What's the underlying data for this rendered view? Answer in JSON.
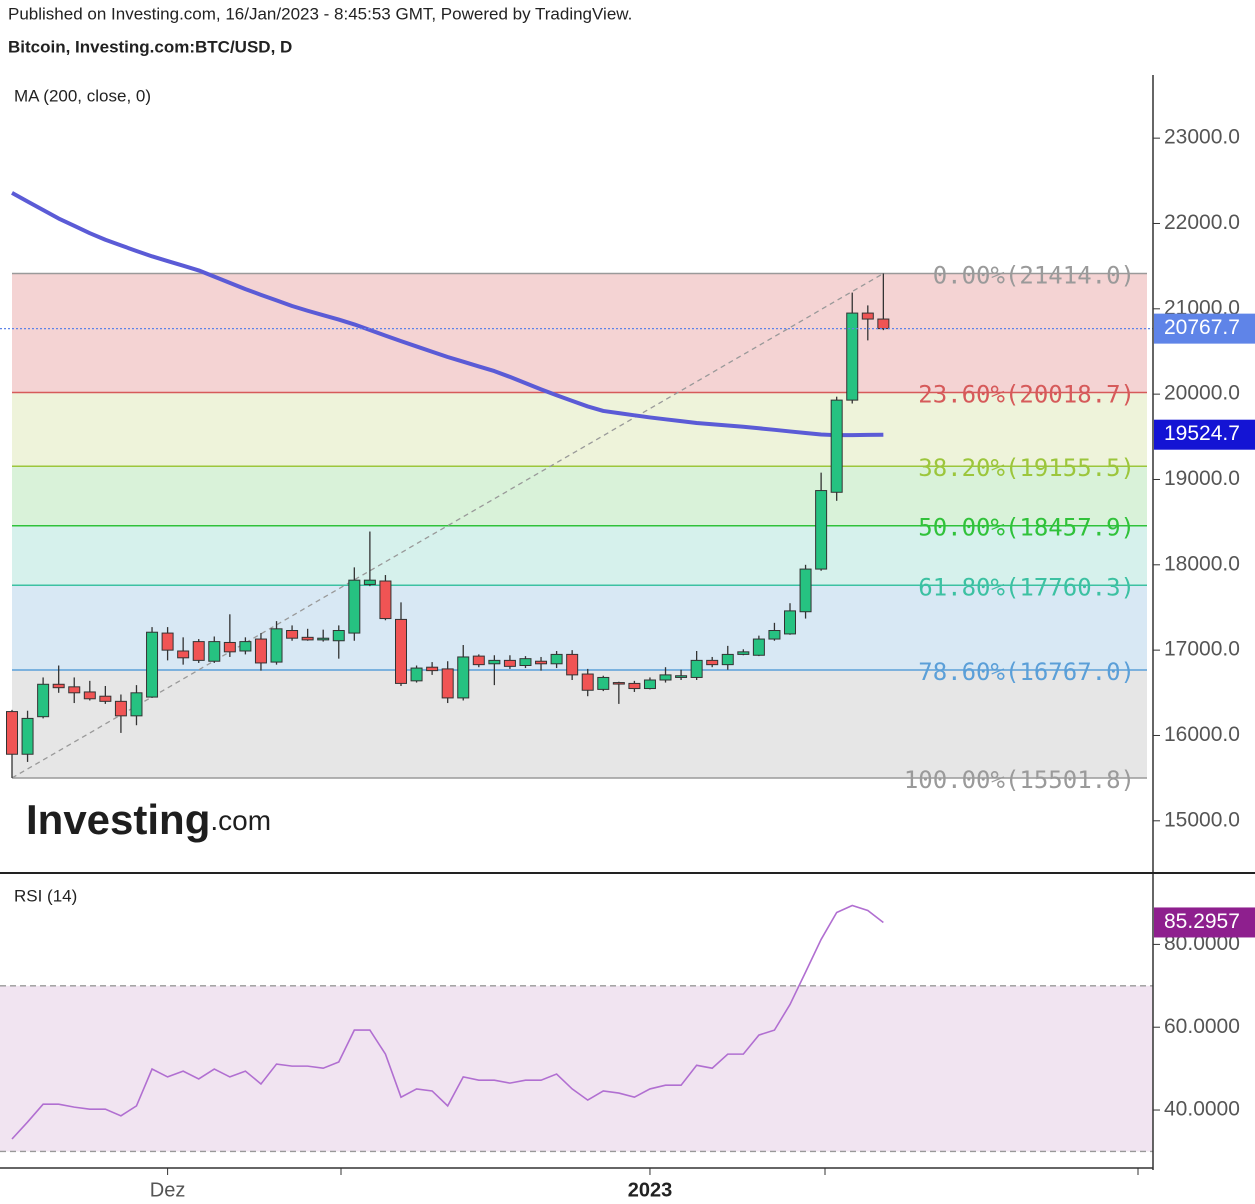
{
  "header": {
    "published": "Published on Investing.com, 16/Jan/2023 - 8:45:53 GMT, Powered by TradingView.",
    "symbol": "Bitcoin, Investing.com:BTC/USD, D"
  },
  "watermark": {
    "main": "Investing",
    "suffix": ".com"
  },
  "chart_data": [
    {
      "type": "candlestick",
      "categories": [
        null,
        null,
        null,
        null,
        null,
        null,
        null,
        null,
        null,
        null,
        "Dez",
        null,
        null,
        null,
        null,
        null,
        null,
        null,
        null,
        null,
        null,
        null,
        null,
        null,
        null,
        null,
        null,
        null,
        null,
        null,
        null,
        null,
        null,
        null,
        null,
        null,
        null,
        null,
        null,
        null,
        null,
        "2023",
        null,
        null,
        null,
        null,
        null,
        null,
        null,
        null,
        null,
        null,
        null,
        null,
        null,
        null,
        null
      ],
      "open": [
        16280,
        15780,
        16220,
        16600,
        16570,
        16510,
        16460,
        16400,
        16230,
        16450,
        17200,
        16990,
        17100,
        16870,
        17090,
        16990,
        17130,
        16860,
        17230,
        17150,
        17120,
        17110,
        17200,
        17770,
        17810,
        17360,
        16640,
        16800,
        16780,
        16440,
        16930,
        16840,
        16880,
        16820,
        16870,
        16840,
        16950,
        16720,
        16540,
        16620,
        16610,
        16550,
        16650,
        16680,
        16680,
        16880,
        16830,
        16950,
        16940,
        17130,
        17190,
        17450,
        17950,
        18850,
        19930,
        20950,
        20880
      ],
      "high": [
        16300,
        16290,
        16680,
        16820,
        16680,
        16640,
        16580,
        16480,
        16590,
        17270,
        17270,
        17150,
        17130,
        17160,
        17420,
        17150,
        17200,
        17340,
        17290,
        17250,
        17240,
        17290,
        17970,
        18390,
        17880,
        17560,
        16820,
        16860,
        16870,
        17060,
        16950,
        16940,
        16940,
        16930,
        16920,
        16990,
        17000,
        16780,
        16700,
        16630,
        16640,
        16680,
        16800,
        16770,
        16990,
        16920,
        17050,
        17010,
        17170,
        17320,
        17550,
        18000,
        19080,
        19970,
        21190,
        21040,
        21414
      ],
      "low": [
        15501.8,
        15690,
        16200,
        16500,
        16380,
        16410,
        16370,
        16030,
        16120,
        16440,
        16880,
        16830,
        16850,
        16850,
        16920,
        16950,
        16760,
        16830,
        17110,
        17110,
        17100,
        16900,
        17110,
        17750,
        17350,
        16580,
        16620,
        16710,
        16380,
        16410,
        16800,
        16590,
        16780,
        16790,
        16760,
        16790,
        16650,
        16460,
        16520,
        16370,
        16510,
        16540,
        16620,
        16650,
        16650,
        16800,
        16770,
        16940,
        16930,
        17110,
        17180,
        17370,
        17930,
        18750,
        19890,
        20630,
        20750
      ],
      "close": [
        15780,
        16200,
        16600,
        16560,
        16500,
        16430,
        16400,
        16230,
        16500,
        17210,
        17000,
        16910,
        16880,
        17100,
        16980,
        17100,
        16850,
        17250,
        17140,
        17120,
        17140,
        17230,
        17820,
        17820,
        17370,
        16610,
        16790,
        16760,
        16440,
        16920,
        16830,
        16880,
        16810,
        16900,
        16840,
        16950,
        16710,
        16530,
        16680,
        16610,
        16550,
        16650,
        16710,
        16700,
        16880,
        16830,
        16950,
        16980,
        17130,
        17230,
        17460,
        17950,
        18870,
        19930,
        20950,
        20880,
        20767.7
      ],
      "up_color": "#26c281",
      "down_color": "#f05454",
      "last_price_color": "#5f84e8",
      "series": [
        {
          "name": "MA (200, close, 0)",
          "color": "#5b5bd6",
          "label_color": "#1414d4",
          "values": [
            22359,
            22258,
            22158,
            22058,
            21972,
            21886,
            21809,
            21743,
            21678,
            21615,
            21560,
            21505,
            21450,
            21377,
            21304,
            21231,
            21164,
            21099,
            21033,
            20977,
            20925,
            20874,
            20817,
            20752,
            20686,
            20621,
            20559,
            20497,
            20435,
            20380,
            20325,
            20270,
            20202,
            20129,
            20056,
            19987,
            19921,
            19856,
            19803,
            19778,
            19752,
            19727,
            19705,
            19684,
            19662,
            19647,
            19632,
            19618,
            19600,
            19582,
            19563,
            19545,
            19527,
            19519,
            19520,
            19522,
            19524.7
          ]
        }
      ],
      "fib_levels": [
        {
          "label": "0.00%(21414.0)",
          "value": 21414,
          "color": "#9a9a9a",
          "fill": "#f4d3d3"
        },
        {
          "label": "23.60%(20018.7)",
          "value": 20018.7,
          "color": "#d65a5a",
          "fill": "#eef3da"
        },
        {
          "label": "38.20%(19155.5)",
          "value": 19155.5,
          "color": "#9cc63c",
          "fill": "#d9f2d9"
        },
        {
          "label": "50.00%(18457.9)",
          "value": 18457.9,
          "color": "#30c23a",
          "fill": "#d6f1ec"
        },
        {
          "label": "61.80%(17760.3)",
          "value": 17760.3,
          "color": "#3cc1a2",
          "fill": "#d8e8f4"
        },
        {
          "label": "78.60%(16767.0)",
          "value": 16767,
          "color": "#5b9fd8",
          "fill": "#e6e6e6"
        },
        {
          "label": "100.00%(15501.8)",
          "value": 15501.8,
          "color": "#9a9a9a"
        }
      ],
      "ylim": [
        14400,
        23740
      ],
      "yticks": [
        {
          "value": 15000,
          "label": "15000.0"
        },
        {
          "value": 16000,
          "label": "16000.0"
        },
        {
          "value": 17000,
          "label": "17000.0"
        },
        {
          "value": 18000,
          "label": "18000.0"
        },
        {
          "value": 19000,
          "label": "19000.0"
        },
        {
          "value": 20000,
          "label": "20000.0"
        },
        {
          "value": 21000,
          "label": "21000.0"
        },
        {
          "value": 22000,
          "label": "22000.0"
        },
        {
          "value": 23000,
          "label": "23000.0"
        }
      ]
    },
    {
      "type": "line",
      "series": [
        {
          "name": "RSI (14)",
          "color": "#b16fd1",
          "label_color": "#8e1f8e",
          "values": [
            33.0,
            37.1,
            41.4,
            41.4,
            40.7,
            40.2,
            40.2,
            38.6,
            41.0,
            49.9,
            48.0,
            49.4,
            47.5,
            49.9,
            48.0,
            49.4,
            46.3,
            51.1,
            50.6,
            50.6,
            50.1,
            51.6,
            59.3,
            59.3,
            53.5,
            43.1,
            45.1,
            44.6,
            41.0,
            48.0,
            47.2,
            47.2,
            46.5,
            47.2,
            47.2,
            48.7,
            45.1,
            42.4,
            44.6,
            44.1,
            43.1,
            45.1,
            46.0,
            46.0,
            50.8,
            50.1,
            53.5,
            53.5,
            58.1,
            59.3,
            65.5,
            73.3,
            81.2,
            87.7,
            89.4,
            88.2,
            85.2957
          ]
        }
      ],
      "bands": [
        30,
        70
      ],
      "band_fill": "#f1e4f1",
      "ylim": [
        26,
        97
      ],
      "yticks": [
        {
          "value": 40,
          "label": "40.0000"
        },
        {
          "value": 60,
          "label": "60.0000"
        },
        {
          "value": 80,
          "label": "80.0000"
        }
      ]
    }
  ]
}
